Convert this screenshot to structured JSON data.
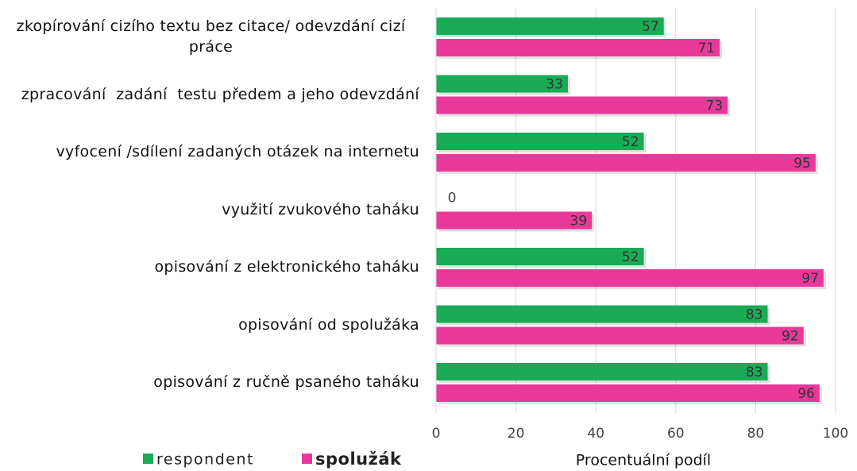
{
  "chart_data": {
    "type": "bar",
    "orientation": "horizontal",
    "categories": [
      "zkopírování cizího textu bez citace/ odevzdání cizí práce",
      "zpracování  zadání  testu předem a jeho odevzdání",
      "vyfocení /sdílení zadaných otázek na internetu",
      "využití zvukového taháku",
      "opisování z elektronického taháku",
      "opisování od spolužáka",
      "opisování z ručně psaného taháku"
    ],
    "series": [
      {
        "name": "respondent",
        "color": "#1aab55",
        "values": [
          57,
          33,
          52,
          0,
          52,
          83,
          83
        ]
      },
      {
        "name": "spolužák",
        "color": "#e8399a",
        "values": [
          71,
          73,
          95,
          39,
          97,
          92,
          96
        ]
      }
    ],
    "xlabel": "Procentuální podíl",
    "xlim": [
      0,
      100
    ],
    "xticks": [
      0,
      20,
      40,
      60,
      80,
      100
    ],
    "grid": true,
    "legend": "bottom"
  }
}
